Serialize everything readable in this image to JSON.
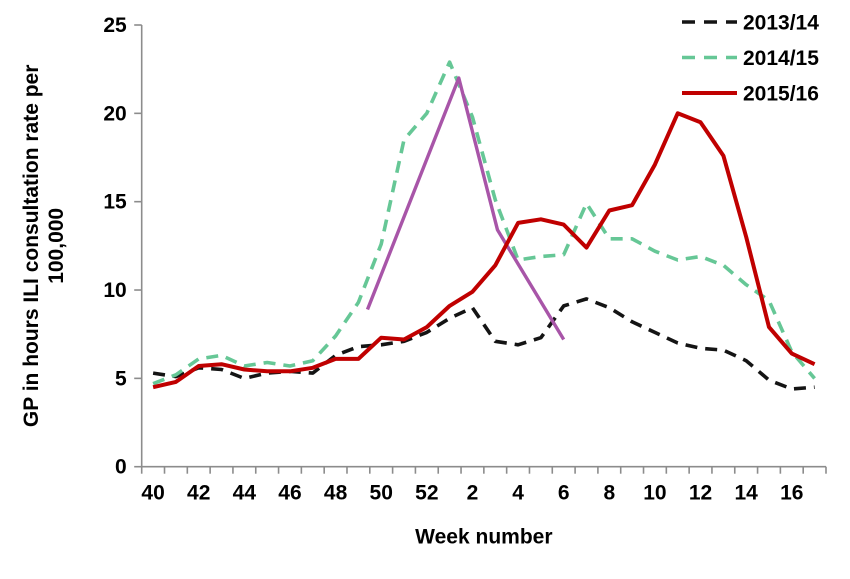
{
  "chart_data": {
    "type": "line",
    "title": "",
    "xlabel": "Week number",
    "ylabel_line1": "GP in hours ILI consultation rate per",
    "ylabel_line2": "100,000",
    "ylim": [
      0,
      25
    ],
    "yticks": [
      0,
      5,
      10,
      15,
      20,
      25
    ],
    "grid": "off",
    "legend_position": "top-right",
    "categories": [
      "40",
      "41",
      "42",
      "43",
      "44",
      "45",
      "46",
      "47",
      "48",
      "49",
      "50",
      "51",
      "52",
      "1",
      "2",
      "3",
      "4",
      "5",
      "6",
      "7",
      "8",
      "9",
      "10",
      "11",
      "12",
      "13",
      "14",
      "15",
      "16",
      "17"
    ],
    "xtick_label_every": 2,
    "axis_color": "#8c8c8c",
    "series": [
      {
        "name": "2013/14",
        "color": "#141414",
        "style": "dashed",
        "values": [
          5.3,
          5.1,
          5.6,
          5.5,
          5.0,
          5.3,
          5.4,
          5.3,
          6.3,
          6.8,
          6.9,
          7.1,
          7.6,
          8.4,
          9.0,
          7.1,
          6.9,
          7.3,
          9.1,
          9.5,
          9.0,
          8.2,
          7.6,
          7.0,
          6.7,
          6.6,
          6.0,
          4.9,
          4.4,
          4.5
        ]
      },
      {
        "name": "2014/15",
        "color": "#66c796",
        "style": "dashed",
        "values": [
          4.7,
          5.2,
          6.1,
          6.3,
          5.7,
          5.9,
          5.7,
          6.0,
          7.4,
          9.3,
          12.6,
          18.5,
          20.0,
          22.9,
          19.8,
          15.1,
          11.7,
          11.9,
          12.0,
          14.9,
          12.9,
          12.9,
          12.2,
          11.7,
          11.9,
          11.4,
          10.3,
          9.4,
          6.5,
          5.0
        ]
      },
      {
        "name": "2015/16",
        "color": "#c00000",
        "style": "solid",
        "values": [
          4.5,
          4.8,
          5.7,
          5.8,
          5.5,
          5.4,
          5.4,
          5.6,
          6.1,
          6.1,
          7.3,
          7.2,
          7.9,
          9.1,
          9.9,
          11.4,
          13.8,
          14.0,
          13.7,
          12.4,
          14.5,
          14.8,
          17.1,
          20.0,
          19.5,
          17.6,
          13.0,
          7.9,
          6.4,
          5.8
        ]
      }
    ],
    "annotation_line": {
      "name": "unlabeled-purple-line",
      "color": "#a855a8",
      "style": "solid",
      "points": [
        [
          9.4,
          8.9
        ],
        [
          13.4,
          22.0
        ],
        [
          15.1,
          13.4
        ],
        [
          18.0,
          7.2
        ]
      ]
    }
  }
}
